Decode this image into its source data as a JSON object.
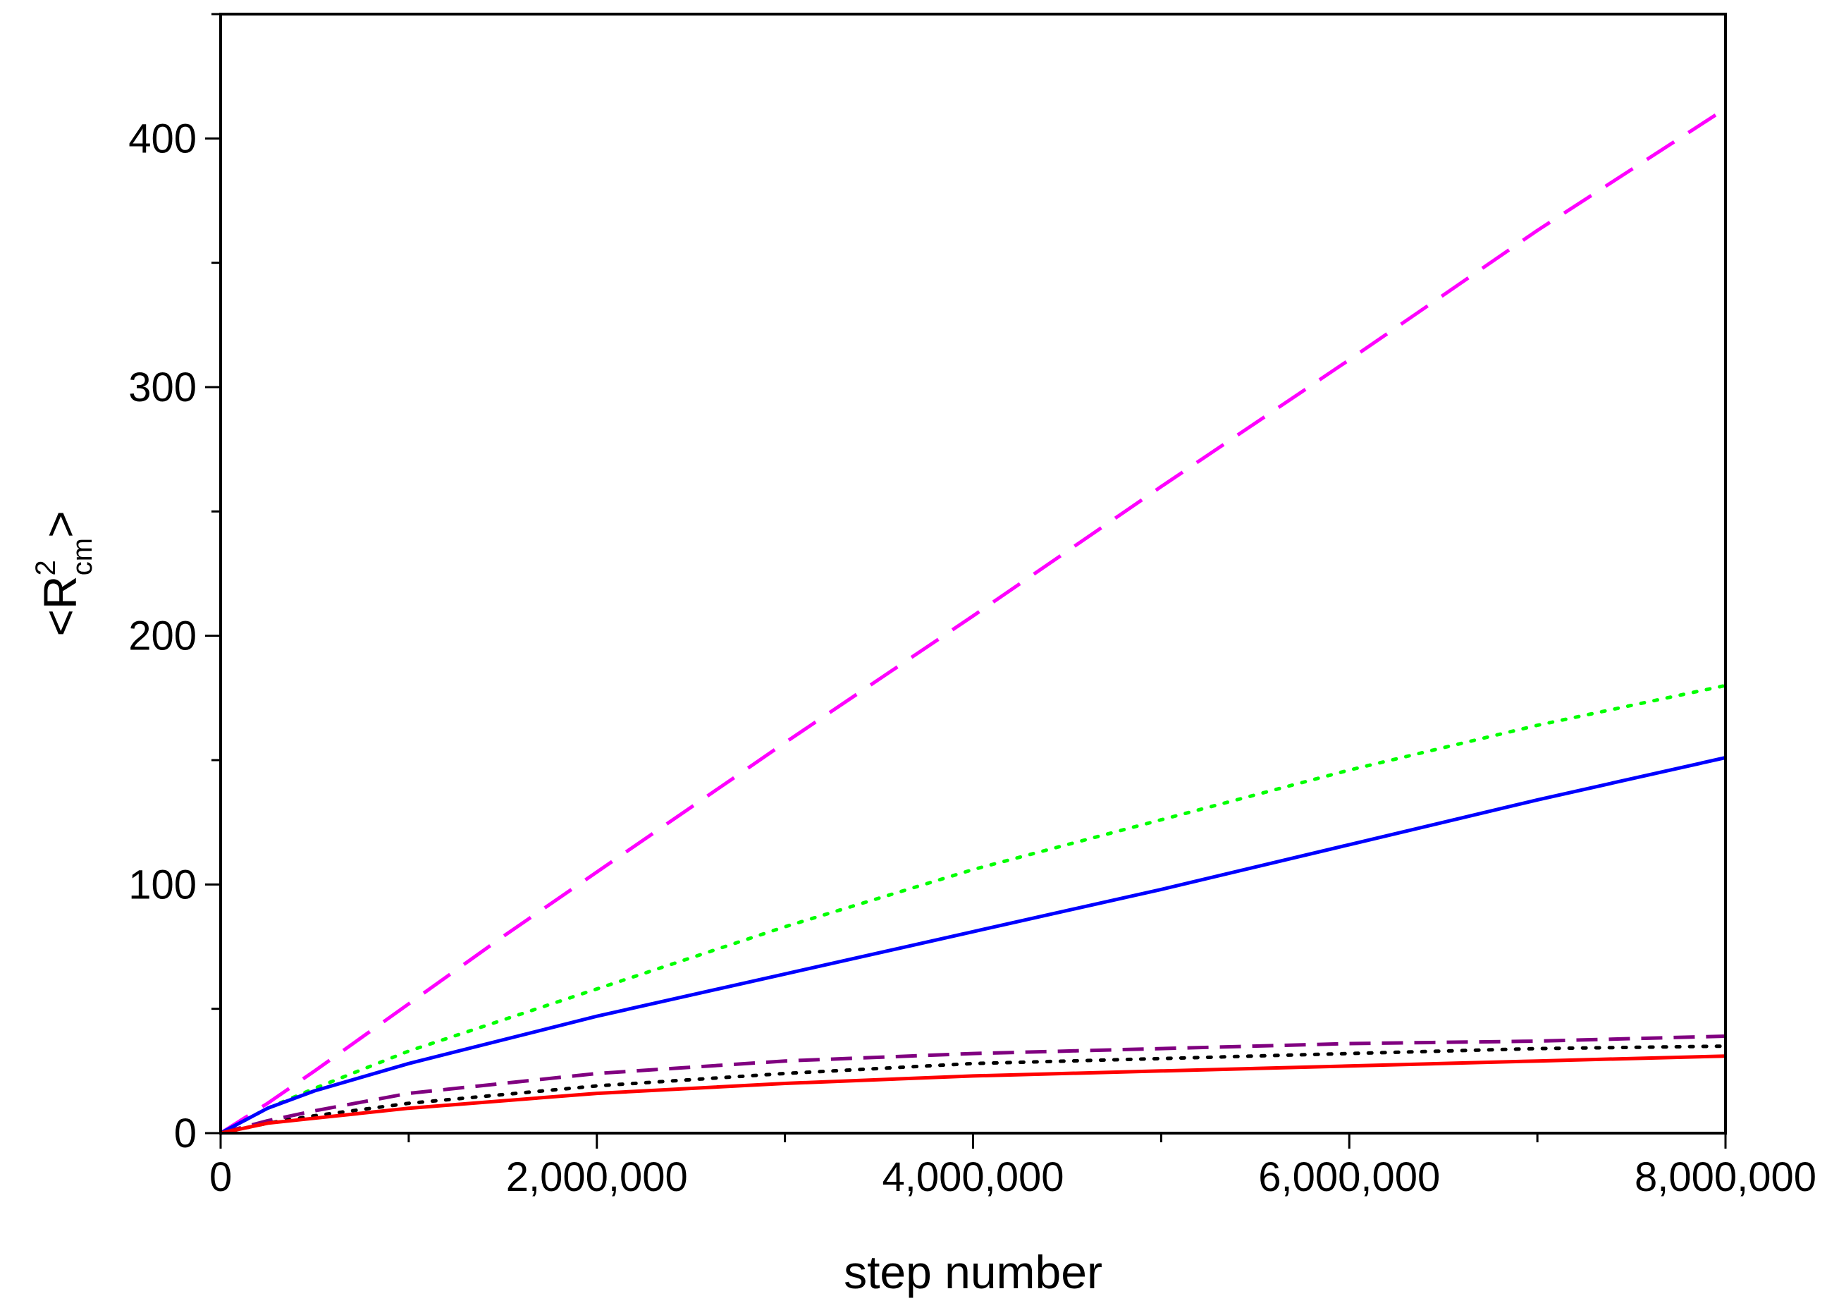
{
  "chart_data": {
    "type": "line",
    "xlabel": "step number",
    "ylabel": {
      "open": "<R",
      "sup": "2",
      "sub": "cm",
      "close": ">"
    },
    "xlim": [
      0,
      8000000
    ],
    "ylim": [
      0,
      450
    ],
    "x_ticks": [
      {
        "value": 0,
        "label": "0"
      },
      {
        "value": 2000000,
        "label": "2,000,000"
      },
      {
        "value": 4000000,
        "label": "4,000,000"
      },
      {
        "value": 6000000,
        "label": "6,000,000"
      },
      {
        "value": 8000000,
        "label": "8,000,000"
      }
    ],
    "x_minor_ticks": [
      1000000,
      3000000,
      5000000,
      7000000
    ],
    "y_ticks": [
      {
        "value": 0,
        "label": "0"
      },
      {
        "value": 100,
        "label": "100"
      },
      {
        "value": 200,
        "label": "200"
      },
      {
        "value": 300,
        "label": "300"
      },
      {
        "value": 400,
        "label": "400"
      }
    ],
    "y_minor_ticks": [
      50,
      150,
      250,
      350,
      450
    ],
    "grid": false,
    "legend": "none",
    "series": [
      {
        "color": "#ff00ff",
        "style": "long-dash",
        "x": [
          0,
          250000,
          500000,
          1000000,
          1500000,
          2000000,
          3000000,
          4000000,
          5000000,
          6000000,
          7000000,
          8000000
        ],
        "y": [
          0,
          12,
          25,
          52,
          79,
          105,
          157,
          208,
          260,
          311,
          363,
          412
        ]
      },
      {
        "color": "#00ff00",
        "style": "dotted",
        "x": [
          0,
          250000,
          500000,
          1000000,
          2000000,
          3000000,
          4000000,
          5000000,
          6000000,
          7000000,
          8000000
        ],
        "y": [
          0,
          10,
          18,
          33,
          58,
          83,
          106,
          126,
          146,
          164,
          180
        ]
      },
      {
        "color": "#0000ff",
        "style": "solid",
        "x": [
          0,
          250000,
          500000,
          1000000,
          2000000,
          3000000,
          4000000,
          5000000,
          6000000,
          7000000,
          8000000
        ],
        "y": [
          0,
          10,
          17,
          28,
          47,
          64,
          81,
          98,
          116,
          134,
          151
        ]
      },
      {
        "color": "#800080",
        "style": "dashed",
        "x": [
          0,
          250000,
          500000,
          1000000,
          2000000,
          3000000,
          4000000,
          5000000,
          6000000,
          7000000,
          8000000
        ],
        "y": [
          0,
          5,
          9,
          16,
          24,
          29,
          32,
          34,
          36,
          37,
          39
        ]
      },
      {
        "color": "#000000",
        "style": "dotted",
        "x": [
          0,
          250000,
          500000,
          1000000,
          2000000,
          3000000,
          4000000,
          5000000,
          6000000,
          7000000,
          8000000
        ],
        "y": [
          0,
          4,
          7,
          12,
          19,
          24,
          28,
          30,
          32,
          34,
          35
        ]
      },
      {
        "color": "#ff0000",
        "style": "solid",
        "x": [
          0,
          250000,
          500000,
          1000000,
          2000000,
          3000000,
          4000000,
          5000000,
          6000000,
          7000000,
          8000000
        ],
        "y": [
          0,
          4,
          6,
          10,
          16,
          20,
          23,
          25,
          27,
          29,
          31
        ]
      }
    ]
  }
}
